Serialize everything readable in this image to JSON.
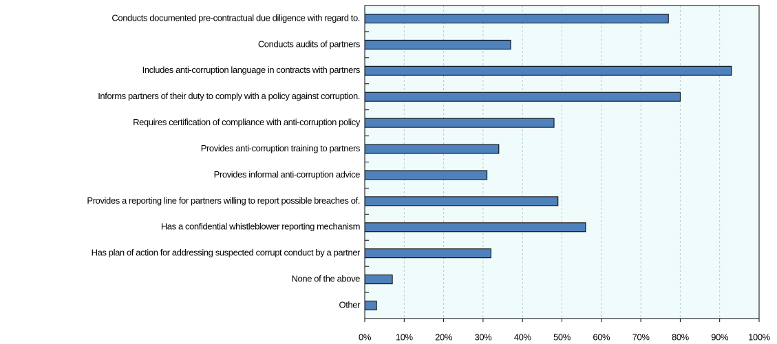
{
  "chart_data": {
    "type": "hbar",
    "categories": [
      "Conducts documented pre-contractual due diligence with regard to.",
      "Conducts audits of partners",
      "Includes anti-corruption language in contracts with partners",
      "Informs partners of their duty to comply with a policy against corruption.",
      "Requires certification of compliance with anti-corruption policy",
      "Provides anti-corruption training to partners",
      "Provides informal anti-corruption advice",
      "Provides a reporting line for partners willing to report possible breaches of.",
      "Has a confidential whistleblower reporting mechanism",
      "Has plan of action for addressing suspected corrupt conduct by a partner",
      "None of the above",
      "Other"
    ],
    "values": [
      77,
      37,
      93,
      80,
      48,
      34,
      31,
      49,
      56,
      32,
      7,
      3
    ],
    "color": "#4f81bd",
    "xlim": [
      0,
      100
    ],
    "xticks": [
      {
        "value": 0,
        "label": "0%"
      },
      {
        "value": 10,
        "label": "10%"
      },
      {
        "value": 20,
        "label": "20%"
      },
      {
        "value": 30,
        "label": "30%"
      },
      {
        "value": 40,
        "label": "40%"
      },
      {
        "value": 50,
        "label": "50%"
      },
      {
        "value": 60,
        "label": "60%"
      },
      {
        "value": 70,
        "label": "70%"
      },
      {
        "value": 80,
        "label": "80%"
      },
      {
        "value": 90,
        "label": "90%"
      },
      {
        "value": 100,
        "label": "100%"
      }
    ],
    "grid": true
  }
}
